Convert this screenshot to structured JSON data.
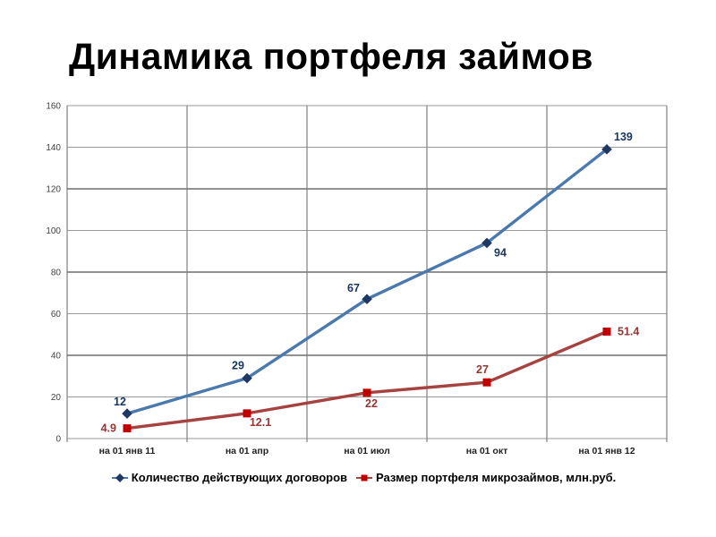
{
  "title": "Динамика портфеля займов",
  "chart_data": {
    "type": "line",
    "title": "Динамика портфеля займов",
    "xlabel": "",
    "ylabel": "",
    "ylim": [
      0,
      160
    ],
    "ytick_step": 20,
    "grid": true,
    "legend_position": "bottom",
    "categories": [
      "на 01 янв 11",
      "на 01 апр",
      "на 01 июл",
      "на 01 окт",
      "на 01 янв 12"
    ],
    "series": [
      {
        "name": "Количество действующих договоров",
        "values": [
          12,
          29,
          67,
          94,
          139
        ],
        "marker": "diamond",
        "line_color": "#4a79ae",
        "marker_color": "#1f3864",
        "label_color": "#17365d",
        "label_dx": [
          -8,
          -10,
          -15,
          15,
          8
        ],
        "label_dy": [
          -9,
          -10,
          -8,
          15,
          -10
        ],
        "label_anchor": [
          "middle",
          "middle",
          "middle",
          "middle",
          "start"
        ]
      },
      {
        "name": "Размер портфеля микрозаймов, млн.руб.",
        "values": [
          4.9,
          12.1,
          22,
          27,
          51.4
        ],
        "marker": "square",
        "line_color": "#a6423f",
        "marker_color": "#c00000",
        "label_color": "#943634",
        "label_dx": [
          -12,
          15,
          5,
          -5,
          12
        ],
        "label_dy": [
          4,
          14,
          16,
          -10,
          4
        ],
        "label_anchor": [
          "end",
          "middle",
          "middle",
          "middle",
          "start"
        ]
      }
    ],
    "ytick_labels": [
      "0",
      "20",
      "40",
      "60",
      "80",
      "100",
      "120",
      "140",
      "160"
    ],
    "darker_gridline_values": [
      40,
      80,
      120
    ]
  }
}
